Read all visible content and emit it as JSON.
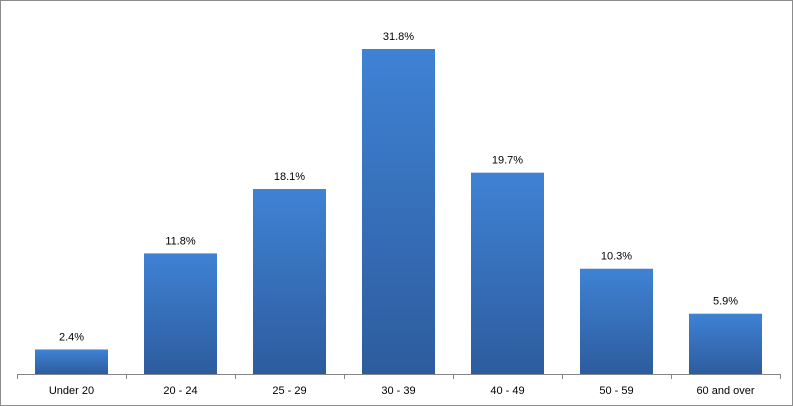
{
  "chart_data": {
    "type": "bar",
    "title": "",
    "xlabel": "",
    "ylabel": "",
    "categories": [
      "Under 20",
      "20 - 24",
      "25 - 29",
      "30 - 39",
      "40 - 49",
      "50 - 59",
      "60 and over"
    ],
    "values": [
      2.4,
      11.8,
      18.1,
      31.8,
      19.7,
      10.3,
      5.9
    ],
    "value_labels": [
      "2.4%",
      "11.8%",
      "18.1%",
      "31.8%",
      "19.7%",
      "10.3%",
      "5.9%"
    ],
    "ylim": [
      0,
      31.8
    ],
    "y_axis_visible": false,
    "grid": false,
    "legend": "none",
    "colors": {
      "bar_top": "#3f82d4",
      "bar_bottom": "#2d5c9e",
      "axis": "#868686",
      "border": "#8c8c8c"
    }
  }
}
